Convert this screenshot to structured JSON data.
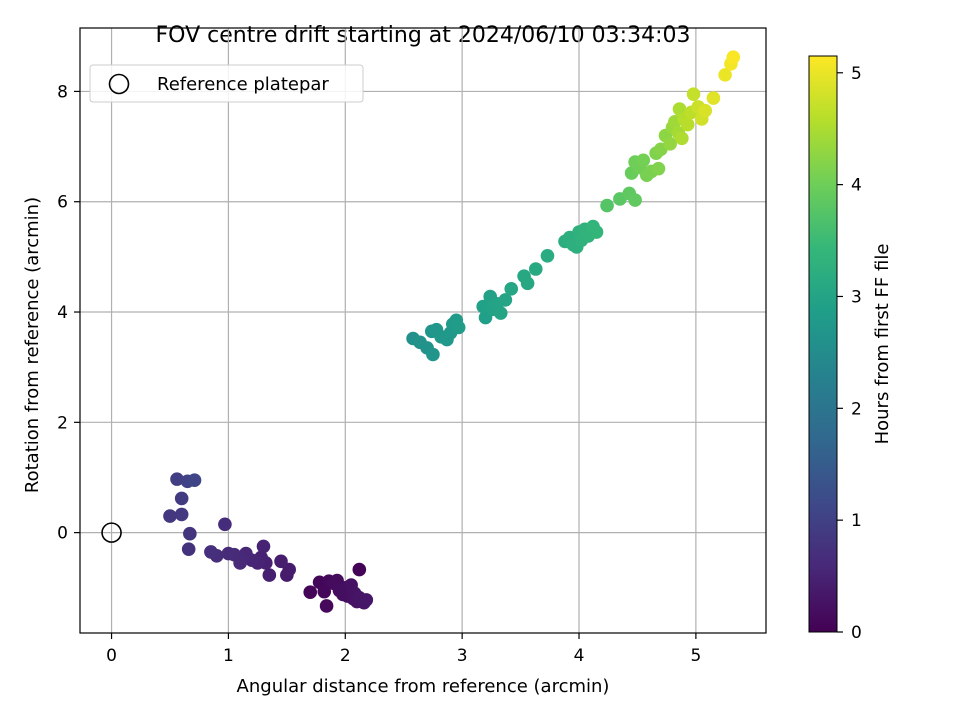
{
  "chart_data": {
    "type": "scatter",
    "title": "FOV centre drift starting at 2024/06/10 03:34:03",
    "xlabel": "Angular distance from reference (arcmin)",
    "ylabel": "Rotation from reference (arcmin)",
    "xlim": [
      -0.27,
      5.6
    ],
    "ylim": [
      -1.82,
      9.15
    ],
    "xticks": [
      0,
      1,
      2,
      3,
      4,
      5
    ],
    "yticks": [
      0,
      2,
      4,
      6,
      8
    ],
    "grid": true,
    "legend": {
      "placement": "top-left",
      "entries": [
        "Reference platepar"
      ]
    },
    "reference_point": {
      "x": 0,
      "y": 0,
      "marker": "open-circle",
      "color": "#000000"
    },
    "colorbar": {
      "label": "Hours from first FF file",
      "range": [
        0,
        5.15
      ],
      "ticks": [
        0,
        1,
        2,
        3,
        4,
        5
      ],
      "colormap": [
        "#440154",
        "#482878",
        "#3e4989",
        "#31688e",
        "#26828e",
        "#1f9e89",
        "#35b779",
        "#6ece58",
        "#b5de2b",
        "#fde725"
      ]
    },
    "series": [
      {
        "points": [
          {
            "x": 2.12,
            "y": -0.67,
            "c": 0.03
          },
          {
            "x": 1.7,
            "y": -1.08,
            "c": 0.05
          },
          {
            "x": 1.78,
            "y": -0.9,
            "c": 0.07
          },
          {
            "x": 1.82,
            "y": -1.07,
            "c": 0.09
          },
          {
            "x": 1.84,
            "y": -1.33,
            "c": 0.1
          },
          {
            "x": 1.86,
            "y": -0.88,
            "c": 0.12
          },
          {
            "x": 1.9,
            "y": -0.92,
            "c": 0.14
          },
          {
            "x": 1.93,
            "y": -0.87,
            "c": 0.15
          },
          {
            "x": 1.95,
            "y": -1.05,
            "c": 0.17
          },
          {
            "x": 1.98,
            "y": -1.12,
            "c": 0.18
          },
          {
            "x": 2.0,
            "y": -1.0,
            "c": 0.2
          },
          {
            "x": 2.02,
            "y": -1.15,
            "c": 0.21
          },
          {
            "x": 2.05,
            "y": -0.95,
            "c": 0.23
          },
          {
            "x": 2.07,
            "y": -1.2,
            "c": 0.24
          },
          {
            "x": 2.08,
            "y": -1.1,
            "c": 0.26
          },
          {
            "x": 2.1,
            "y": -1.25,
            "c": 0.27
          },
          {
            "x": 2.12,
            "y": -1.18,
            "c": 0.29
          },
          {
            "x": 2.16,
            "y": -1.27,
            "c": 0.3
          },
          {
            "x": 2.18,
            "y": -1.22,
            "c": 0.32
          },
          {
            "x": 1.5,
            "y": -0.77,
            "c": 0.38
          },
          {
            "x": 1.52,
            "y": -0.67,
            "c": 0.4
          },
          {
            "x": 1.45,
            "y": -0.52,
            "c": 0.42
          },
          {
            "x": 1.35,
            "y": -0.77,
            "c": 0.44
          },
          {
            "x": 1.32,
            "y": -0.55,
            "c": 0.46
          },
          {
            "x": 1.28,
            "y": -0.45,
            "c": 0.48
          },
          {
            "x": 1.3,
            "y": -0.25,
            "c": 0.5
          },
          {
            "x": 1.25,
            "y": -0.55,
            "c": 0.52
          },
          {
            "x": 1.2,
            "y": -0.5,
            "c": 0.54
          },
          {
            "x": 1.15,
            "y": -0.38,
            "c": 0.56
          },
          {
            "x": 1.12,
            "y": -0.45,
            "c": 0.58
          },
          {
            "x": 1.1,
            "y": -0.55,
            "c": 0.6
          },
          {
            "x": 1.05,
            "y": -0.4,
            "c": 0.62
          },
          {
            "x": 1.0,
            "y": -0.38,
            "c": 0.64
          },
          {
            "x": 0.97,
            "y": 0.15,
            "c": 0.66
          },
          {
            "x": 0.9,
            "y": -0.42,
            "c": 0.68
          },
          {
            "x": 0.85,
            "y": -0.35,
            "c": 0.7
          },
          {
            "x": 0.66,
            "y": -0.3,
            "c": 0.74
          },
          {
            "x": 0.67,
            "y": -0.02,
            "c": 0.78
          },
          {
            "x": 0.5,
            "y": 0.3,
            "c": 0.82
          },
          {
            "x": 0.6,
            "y": 0.33,
            "c": 0.86
          },
          {
            "x": 0.6,
            "y": 0.62,
            "c": 0.9
          },
          {
            "x": 0.56,
            "y": 0.97,
            "c": 0.96
          },
          {
            "x": 0.65,
            "y": 0.93,
            "c": 1.02
          },
          {
            "x": 0.71,
            "y": 0.95,
            "c": 1.08
          },
          {
            "x": 2.58,
            "y": 3.52,
            "c": 2.6
          },
          {
            "x": 2.64,
            "y": 3.45,
            "c": 2.62
          },
          {
            "x": 2.7,
            "y": 3.35,
            "c": 2.64
          },
          {
            "x": 2.75,
            "y": 3.23,
            "c": 2.66
          },
          {
            "x": 2.74,
            "y": 3.65,
            "c": 2.68
          },
          {
            "x": 2.78,
            "y": 3.68,
            "c": 2.7
          },
          {
            "x": 2.82,
            "y": 3.55,
            "c": 2.72
          },
          {
            "x": 2.87,
            "y": 3.5,
            "c": 2.74
          },
          {
            "x": 2.9,
            "y": 3.62,
            "c": 2.76
          },
          {
            "x": 2.92,
            "y": 3.78,
            "c": 2.78
          },
          {
            "x": 2.95,
            "y": 3.85,
            "c": 2.8
          },
          {
            "x": 2.97,
            "y": 3.72,
            "c": 2.82
          },
          {
            "x": 3.2,
            "y": 3.9,
            "c": 2.9
          },
          {
            "x": 3.18,
            "y": 4.1,
            "c": 2.92
          },
          {
            "x": 3.24,
            "y": 4.28,
            "c": 2.94
          },
          {
            "x": 3.26,
            "y": 4.05,
            "c": 2.96
          },
          {
            "x": 3.3,
            "y": 4.15,
            "c": 2.98
          },
          {
            "x": 3.33,
            "y": 3.98,
            "c": 3.0
          },
          {
            "x": 3.37,
            "y": 4.22,
            "c": 3.02
          },
          {
            "x": 3.42,
            "y": 4.42,
            "c": 3.04
          },
          {
            "x": 3.53,
            "y": 4.65,
            "c": 3.08
          },
          {
            "x": 3.56,
            "y": 4.52,
            "c": 3.1
          },
          {
            "x": 3.63,
            "y": 4.78,
            "c": 3.12
          },
          {
            "x": 3.73,
            "y": 5.02,
            "c": 3.16
          },
          {
            "x": 3.88,
            "y": 5.28,
            "c": 3.2
          },
          {
            "x": 3.92,
            "y": 5.35,
            "c": 3.22
          },
          {
            "x": 3.95,
            "y": 5.22,
            "c": 3.24
          },
          {
            "x": 3.98,
            "y": 5.18,
            "c": 3.26
          },
          {
            "x": 4.0,
            "y": 5.45,
            "c": 3.28
          },
          {
            "x": 4.02,
            "y": 5.3,
            "c": 3.3
          },
          {
            "x": 4.05,
            "y": 5.5,
            "c": 3.32
          },
          {
            "x": 4.08,
            "y": 5.38,
            "c": 3.34
          },
          {
            "x": 4.12,
            "y": 5.55,
            "c": 3.36
          },
          {
            "x": 4.15,
            "y": 5.45,
            "c": 3.38
          },
          {
            "x": 4.24,
            "y": 5.93,
            "c": 3.75
          },
          {
            "x": 4.35,
            "y": 6.05,
            "c": 3.8
          },
          {
            "x": 4.43,
            "y": 6.15,
            "c": 3.85
          },
          {
            "x": 4.48,
            "y": 6.03,
            "c": 3.88
          },
          {
            "x": 4.45,
            "y": 6.52,
            "c": 3.95
          },
          {
            "x": 4.48,
            "y": 6.72,
            "c": 4.0
          },
          {
            "x": 4.52,
            "y": 6.62,
            "c": 4.02
          },
          {
            "x": 4.55,
            "y": 6.75,
            "c": 4.05
          },
          {
            "x": 4.58,
            "y": 6.48,
            "c": 4.08
          },
          {
            "x": 4.62,
            "y": 6.55,
            "c": 4.1
          },
          {
            "x": 4.66,
            "y": 6.88,
            "c": 4.14
          },
          {
            "x": 4.68,
            "y": 6.6,
            "c": 4.16
          },
          {
            "x": 4.7,
            "y": 6.95,
            "c": 4.2
          },
          {
            "x": 4.74,
            "y": 7.2,
            "c": 4.25
          },
          {
            "x": 4.78,
            "y": 7.05,
            "c": 4.3
          },
          {
            "x": 4.8,
            "y": 7.35,
            "c": 4.35
          },
          {
            "x": 4.82,
            "y": 7.45,
            "c": 4.4
          },
          {
            "x": 4.85,
            "y": 7.25,
            "c": 4.45
          },
          {
            "x": 4.86,
            "y": 7.68,
            "c": 4.5
          },
          {
            "x": 4.88,
            "y": 7.15,
            "c": 4.52
          },
          {
            "x": 4.9,
            "y": 7.5,
            "c": 4.56
          },
          {
            "x": 4.93,
            "y": 7.4,
            "c": 4.6
          },
          {
            "x": 4.96,
            "y": 7.62,
            "c": 4.65
          },
          {
            "x": 4.98,
            "y": 7.95,
            "c": 4.7
          },
          {
            "x": 5.02,
            "y": 7.72,
            "c": 4.75
          },
          {
            "x": 5.05,
            "y": 7.5,
            "c": 4.8
          },
          {
            "x": 5.08,
            "y": 7.65,
            "c": 4.85
          },
          {
            "x": 5.15,
            "y": 7.88,
            "c": 4.92
          },
          {
            "x": 5.25,
            "y": 8.3,
            "c": 5.0
          },
          {
            "x": 5.3,
            "y": 8.5,
            "c": 5.06
          },
          {
            "x": 5.32,
            "y": 8.62,
            "c": 5.12
          }
        ]
      }
    ]
  }
}
